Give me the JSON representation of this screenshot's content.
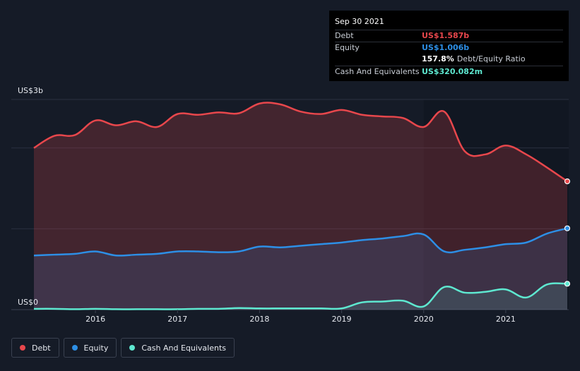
{
  "chart_data": {
    "type": "area",
    "y_top_label": "US$3b",
    "y_bottom_label": "US$0",
    "ylim": [
      0,
      2.6
    ],
    "xlim": [
      2015.25,
      2021.75
    ],
    "x_ticks": [
      {
        "value": 2016,
        "label": "2016"
      },
      {
        "value": 2017,
        "label": "2017"
      },
      {
        "value": 2018,
        "label": "2018"
      },
      {
        "value": 2019,
        "label": "2019"
      },
      {
        "value": 2020,
        "label": "2020"
      },
      {
        "value": 2021,
        "label": "2021"
      }
    ],
    "gridlines": [
      0,
      1.0,
      2.0,
      2.6
    ],
    "series": [
      {
        "name": "Debt",
        "color": "#e8474c",
        "x": [
          2015.25,
          2015.5,
          2015.75,
          2016.0,
          2016.25,
          2016.5,
          2016.75,
          2017.0,
          2017.25,
          2017.5,
          2017.75,
          2018.0,
          2018.25,
          2018.5,
          2018.75,
          2019.0,
          2019.25,
          2019.5,
          2019.75,
          2020.0,
          2020.25,
          2020.5,
          2020.75,
          2021.0,
          2021.25,
          2021.5,
          2021.75
        ],
        "values": [
          2.0,
          2.15,
          2.16,
          2.34,
          2.28,
          2.33,
          2.26,
          2.42,
          2.41,
          2.44,
          2.43,
          2.55,
          2.54,
          2.45,
          2.42,
          2.47,
          2.41,
          2.39,
          2.37,
          2.26,
          2.45,
          1.96,
          1.92,
          2.03,
          1.92,
          1.76,
          1.587
        ]
      },
      {
        "name": "Equity",
        "color": "#2d8fe6",
        "x": [
          2015.25,
          2015.5,
          2015.75,
          2016.0,
          2016.25,
          2016.5,
          2016.75,
          2017.0,
          2017.25,
          2017.5,
          2017.75,
          2018.0,
          2018.25,
          2018.5,
          2018.75,
          2019.0,
          2019.25,
          2019.5,
          2019.75,
          2020.0,
          2020.25,
          2020.5,
          2020.75,
          2021.0,
          2021.25,
          2021.5,
          2021.75
        ],
        "values": [
          0.67,
          0.68,
          0.69,
          0.72,
          0.67,
          0.68,
          0.69,
          0.72,
          0.72,
          0.71,
          0.72,
          0.78,
          0.77,
          0.79,
          0.81,
          0.83,
          0.86,
          0.88,
          0.91,
          0.93,
          0.72,
          0.74,
          0.77,
          0.81,
          0.83,
          0.94,
          1.006
        ]
      },
      {
        "name": "Cash And Equivalents",
        "color": "#5ee8d0",
        "x": [
          2015.25,
          2015.5,
          2015.75,
          2016.0,
          2016.25,
          2016.5,
          2016.75,
          2017.0,
          2017.25,
          2017.5,
          2017.75,
          2018.0,
          2018.25,
          2018.5,
          2018.75,
          2019.0,
          2019.25,
          2019.5,
          2019.75,
          2020.0,
          2020.25,
          2020.5,
          2020.75,
          2021.0,
          2021.25,
          2021.5,
          2021.75
        ],
        "values": [
          0.01,
          0.01,
          0.005,
          0.01,
          0.005,
          0.005,
          0.005,
          0.005,
          0.01,
          0.01,
          0.02,
          0.015,
          0.015,
          0.015,
          0.015,
          0.015,
          0.09,
          0.1,
          0.11,
          0.04,
          0.28,
          0.21,
          0.22,
          0.25,
          0.15,
          0.31,
          0.32
        ]
      }
    ]
  },
  "tooltip": {
    "date": "Sep 30 2021",
    "debt_label": "Debt",
    "debt_value": "US$1.587b",
    "equity_label": "Equity",
    "equity_value": "US$1.006b",
    "ratio_pct": "157.8%",
    "ratio_text": "Debt/Equity Ratio",
    "cash_label": "Cash And Equivalents",
    "cash_value": "US$320.082m"
  },
  "legend": [
    {
      "label": "Debt",
      "color": "#e8474c"
    },
    {
      "label": "Equity",
      "color": "#2d8fe6"
    },
    {
      "label": "Cash And Equivalents",
      "color": "#5ee8d0"
    }
  ]
}
